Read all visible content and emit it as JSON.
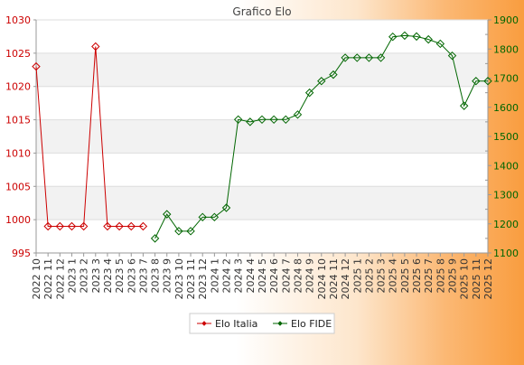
{
  "chart_data": {
    "type": "line",
    "title": "Grafico Elo",
    "categories": [
      "2022 10",
      "2022 11",
      "2022 12",
      "2023 1",
      "2023 2",
      "2023 3",
      "2023 4",
      "2023 5",
      "2023 6",
      "2023 7",
      "2023 8",
      "2023 9",
      "2023 10",
      "2023 11",
      "2023 12",
      "2024 1",
      "2024 2",
      "2024 3",
      "2024 4",
      "2024 5",
      "2024 6",
      "2024 7",
      "2024 8",
      "2024 9",
      "2024 10",
      "2024 11",
      "2024 12",
      "2025 1",
      "2025 2",
      "2025 3",
      "2025 4",
      "2025 5",
      "2025 6",
      "2025 7",
      "2025 8",
      "2025 9",
      "2025 10",
      "2025 11",
      "2025 12"
    ],
    "y_left": {
      "ylim": [
        995,
        1030
      ],
      "ticks": [
        995,
        1000,
        1005,
        1010,
        1015,
        1020,
        1025,
        1030
      ],
      "color": "#cc0000"
    },
    "y_right": {
      "ylim": [
        1100,
        1900
      ],
      "ticks": [
        1100,
        1200,
        1300,
        1400,
        1500,
        1600,
        1700,
        1800,
        1900
      ],
      "color": "#006600"
    },
    "grid": true,
    "legend_position": "bottom-center",
    "series": [
      {
        "name": "Elo Italia",
        "axis": "left",
        "color": "#cc0000",
        "values": [
          1023,
          999,
          999,
          999,
          999,
          1026,
          999,
          999,
          999,
          999,
          null,
          null,
          null,
          null,
          null,
          null,
          null,
          null,
          null,
          null,
          null,
          null,
          null,
          null,
          null,
          null,
          null,
          null,
          null,
          null,
          null,
          null,
          null,
          null,
          null,
          null,
          null,
          null,
          null
        ]
      },
      {
        "name": "Elo FIDE",
        "axis": "right",
        "color": "#006600",
        "values": [
          null,
          null,
          null,
          null,
          null,
          null,
          null,
          null,
          null,
          null,
          1150,
          1233,
          1175,
          1175,
          1223,
          1223,
          1255,
          1558,
          1550,
          1558,
          1558,
          1558,
          1575,
          1650,
          1690,
          1712,
          1770,
          1770,
          1770,
          1770,
          1842,
          1846,
          1843,
          1833,
          1818,
          1777,
          1605,
          1690,
          1690
        ]
      }
    ]
  }
}
